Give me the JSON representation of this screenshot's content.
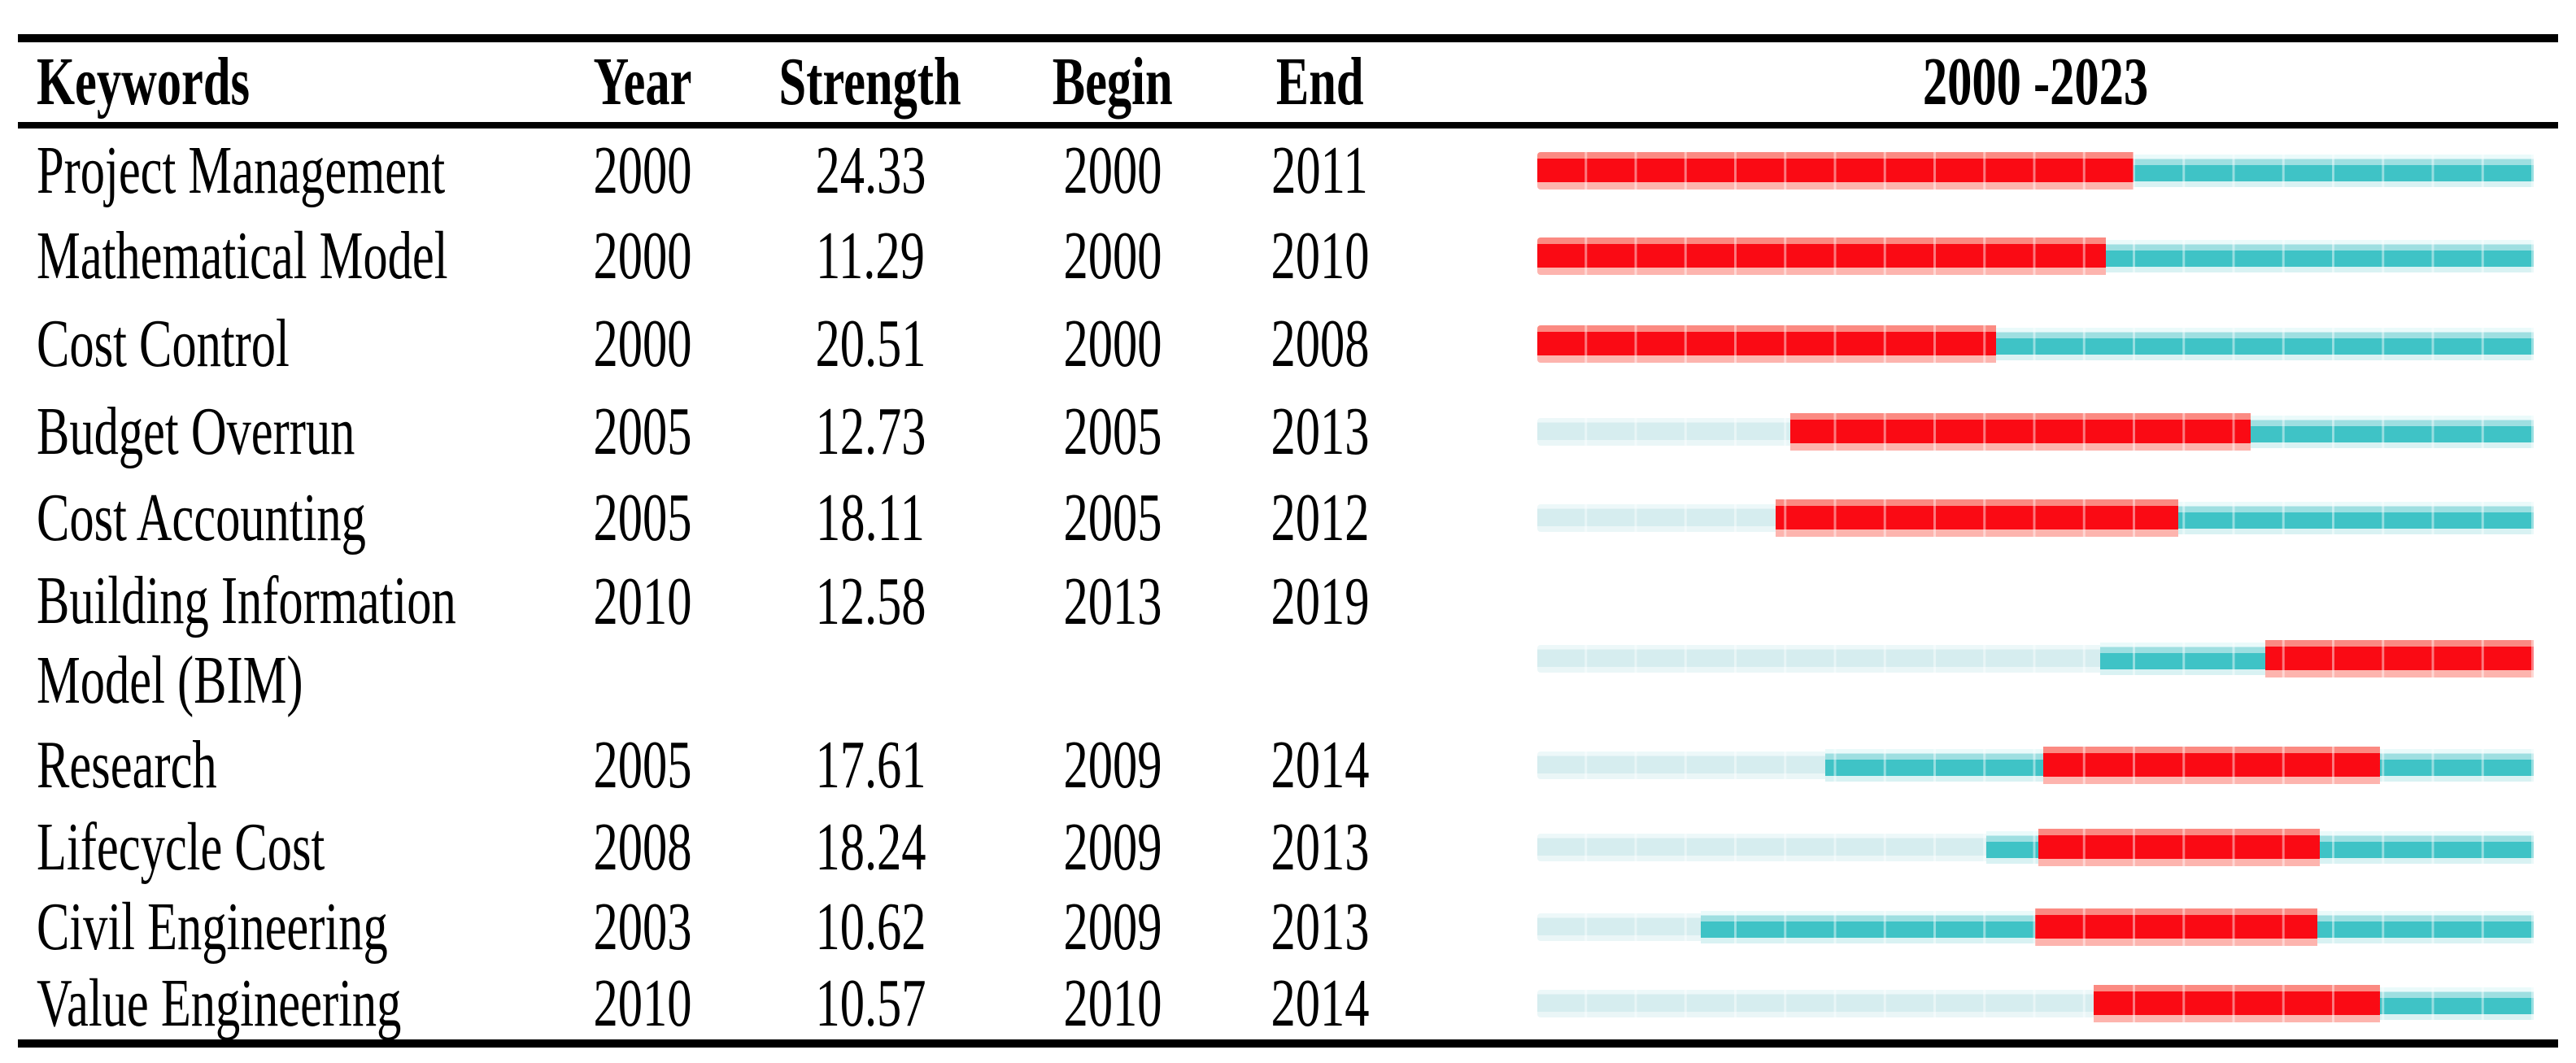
{
  "header": {
    "col_keywords": "Keywords",
    "col_year": "Year",
    "col_strength": "Strength",
    "col_begin": "Begin",
    "col_end": "End",
    "col_range": "2000 -2023"
  },
  "legend_colors": {
    "burst": "#fa0a14",
    "active": "#3fc3c6",
    "pre": "#d6edef"
  },
  "rows": [
    {
      "keyword": "Project Management",
      "year": "2000",
      "strength": "24.33",
      "begin": "2000",
      "end": "2011",
      "segments": [
        {
          "type": "burst",
          "pct": 59.8
        },
        {
          "type": "active",
          "pct": 40.2
        }
      ]
    },
    {
      "keyword": "Mathematical Model",
      "year": "2000",
      "strength": "11.29",
      "begin": "2000",
      "end": "2010",
      "segments": [
        {
          "type": "burst",
          "pct": 57.1
        },
        {
          "type": "active",
          "pct": 42.9
        }
      ]
    },
    {
      "keyword": "Cost Control",
      "year": "2000",
      "strength": "20.51",
      "begin": "2000",
      "end": "2008",
      "segments": [
        {
          "type": "burst",
          "pct": 46.0
        },
        {
          "type": "active",
          "pct": 54.0
        }
      ]
    },
    {
      "keyword": "Budget Overrun",
      "year": "2005",
      "strength": "12.73",
      "begin": "2005",
      "end": "2013",
      "segments": [
        {
          "type": "pre",
          "pct": 25.4
        },
        {
          "type": "burst",
          "pct": 46.2
        },
        {
          "type": "active",
          "pct": 28.4
        }
      ]
    },
    {
      "keyword": "Cost Accounting",
      "year": "2005",
      "strength": "18.11",
      "begin": "2005",
      "end": "2012",
      "segments": [
        {
          "type": "pre",
          "pct": 23.9
        },
        {
          "type": "burst",
          "pct": 40.4
        },
        {
          "type": "active",
          "pct": 35.7
        }
      ]
    },
    {
      "keyword": "Building Information Model (BIM)",
      "lines": [
        "Building Information",
        "Model (BIM)"
      ],
      "year": "2010",
      "strength": "12.58",
      "begin": "2013",
      "end": "2019",
      "segments": [
        {
          "type": "pre",
          "pct": 56.5
        },
        {
          "type": "active",
          "pct": 16.6
        },
        {
          "type": "burst",
          "pct": 26.9
        }
      ]
    },
    {
      "keyword": "Research",
      "year": "2005",
      "strength": "17.61",
      "begin": "2009",
      "end": "2014",
      "segments": [
        {
          "type": "pre",
          "pct": 28.9
        },
        {
          "type": "active",
          "pct": 21.9
        },
        {
          "type": "burst",
          "pct": 33.8
        },
        {
          "type": "active",
          "pct": 15.4
        }
      ]
    },
    {
      "keyword": "Lifecycle Cost",
      "year": "2008",
      "strength": "18.24",
      "begin": "2009",
      "end": "2013",
      "segments": [
        {
          "type": "pre",
          "pct": 45.1
        },
        {
          "type": "active",
          "pct": 5.2
        },
        {
          "type": "burst",
          "pct": 28.2
        },
        {
          "type": "active",
          "pct": 21.5
        }
      ]
    },
    {
      "keyword": "Civil Engineering",
      "year": "2003",
      "strength": "10.62",
      "begin": "2009",
      "end": "2013",
      "segments": [
        {
          "type": "pre",
          "pct": 16.4
        },
        {
          "type": "active",
          "pct": 33.6
        },
        {
          "type": "burst",
          "pct": 28.3
        },
        {
          "type": "active",
          "pct": 21.7
        }
      ]
    },
    {
      "keyword": "Value Engineering",
      "year": "2010",
      "strength": "10.57",
      "begin": "2010",
      "end": "2014",
      "segments": [
        {
          "type": "pre",
          "pct": 55.8
        },
        {
          "type": "burst",
          "pct": 28.8
        },
        {
          "type": "active",
          "pct": 15.4
        }
      ]
    }
  ],
  "chart_data": {
    "type": "table",
    "columns": [
      "Keywords",
      "Year",
      "Strength",
      "Begin",
      "End",
      "2000 -2023"
    ],
    "timeline": {
      "label": "2000 -2023",
      "first_year": 2000,
      "last_year_drawn": 2019,
      "cells": 20
    },
    "rows": [
      {
        "keyword": "Project Management",
        "year": 2000,
        "strength": 24.33,
        "begin": 2000,
        "end": 2011
      },
      {
        "keyword": "Mathematical Model",
        "year": 2000,
        "strength": 11.29,
        "begin": 2000,
        "end": 2010
      },
      {
        "keyword": "Cost Control",
        "year": 2000,
        "strength": 20.51,
        "begin": 2000,
        "end": 2008
      },
      {
        "keyword": "Budget Overrun",
        "year": 2005,
        "strength": 12.73,
        "begin": 2005,
        "end": 2013
      },
      {
        "keyword": "Cost Accounting",
        "year": 2005,
        "strength": 18.11,
        "begin": 2005,
        "end": 2012
      },
      {
        "keyword": "Building Information Model (BIM)",
        "year": 2010,
        "strength": 12.58,
        "begin": 2013,
        "end": 2019
      },
      {
        "keyword": "Research",
        "year": 2005,
        "strength": 17.61,
        "begin": 2009,
        "end": 2014
      },
      {
        "keyword": "Lifecycle Cost",
        "year": 2008,
        "strength": 18.24,
        "begin": 2009,
        "end": 2013
      },
      {
        "keyword": "Civil Engineering",
        "year": 2003,
        "strength": 10.62,
        "begin": 2009,
        "end": 2013
      },
      {
        "keyword": "Value Engineering",
        "year": 2010,
        "strength": 10.57,
        "begin": 2010,
        "end": 2014
      }
    ],
    "segment_colors": {
      "burst": "#fa0a14",
      "active": "#3fc3c6",
      "pre": "#d6edef"
    }
  }
}
